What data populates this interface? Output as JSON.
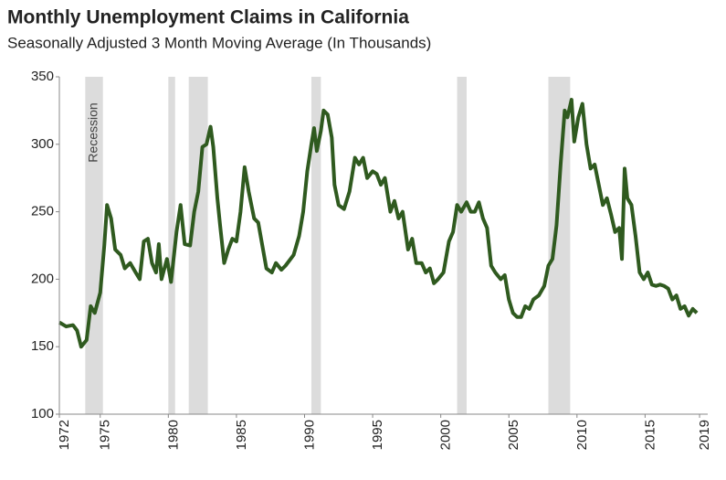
{
  "chart_data": {
    "type": "line",
    "title": "Monthly Unemployment Claims in California",
    "subtitle": "Seasonally Adjusted 3 Month Moving Average (In Thousands)",
    "annotation": "Recession",
    "recession_color": "#dcdcdc",
    "recessions": [
      [
        1973.9,
        1975.2
      ],
      [
        1980.0,
        1980.5
      ],
      [
        1981.5,
        1982.9
      ],
      [
        1990.5,
        1991.2
      ],
      [
        2001.2,
        2001.9
      ],
      [
        2007.9,
        2009.5
      ]
    ],
    "xlim": [
      1972,
      2019.6
    ],
    "xticks": [
      1972,
      1975,
      1980,
      1985,
      1990,
      1995,
      2000,
      2005,
      2010,
      2015,
      2019
    ],
    "ylim": [
      100,
      350
    ],
    "yticks": [
      100,
      150,
      200,
      250,
      300,
      350
    ],
    "series": [
      {
        "color": "#2f5a1f",
        "x": [
          1972.0,
          1972.5,
          1973.0,
          1973.3,
          1973.6,
          1974.0,
          1974.3,
          1974.6,
          1975.0,
          1975.3,
          1975.5,
          1975.8,
          1976.1,
          1976.5,
          1976.8,
          1977.2,
          1977.6,
          1977.9,
          1978.2,
          1978.5,
          1978.8,
          1979.1,
          1979.3,
          1979.5,
          1979.9,
          1980.2,
          1980.6,
          1980.9,
          1981.2,
          1981.6,
          1981.9,
          1982.2,
          1982.5,
          1982.8,
          1983.1,
          1983.3,
          1983.6,
          1983.8,
          1984.1,
          1984.4,
          1984.7,
          1985.0,
          1985.3,
          1985.6,
          1985.9,
          1986.3,
          1986.6,
          1986.9,
          1987.2,
          1987.6,
          1987.9,
          1988.3,
          1988.6,
          1988.9,
          1989.2,
          1989.6,
          1989.9,
          1990.2,
          1990.5,
          1990.7,
          1990.9,
          1991.2,
          1991.4,
          1991.7,
          1992.0,
          1992.2,
          1992.5,
          1992.9,
          1993.3,
          1993.7,
          1994.0,
          1994.3,
          1994.6,
          1995.0,
          1995.3,
          1995.6,
          1995.9,
          1996.3,
          1996.6,
          1996.9,
          1997.2,
          1997.6,
          1997.9,
          1998.2,
          1998.6,
          1998.9,
          1999.2,
          1999.5,
          1999.8,
          2000.2,
          2000.6,
          2000.9,
          2001.2,
          2001.5,
          2001.9,
          2002.2,
          2002.5,
          2002.8,
          2003.1,
          2003.4,
          2003.7,
          2004.0,
          2004.4,
          2004.7,
          2005.0,
          2005.3,
          2005.6,
          2005.9,
          2006.2,
          2006.5,
          2006.8,
          2007.2,
          2007.6,
          2007.9,
          2008.2,
          2008.5,
          2008.8,
          2009.1,
          2009.3,
          2009.6,
          2009.8,
          2010.1,
          2010.4,
          2010.7,
          2011.0,
          2011.3,
          2011.6,
          2011.9,
          2012.2,
          2012.5,
          2012.8,
          2013.1,
          2013.3,
          2013.5,
          2013.7,
          2014.0,
          2014.3,
          2014.6,
          2014.9,
          2015.2,
          2015.5,
          2015.8,
          2016.1,
          2016.4,
          2016.7,
          2017.0,
          2017.3,
          2017.6,
          2017.9,
          2018.2,
          2018.5,
          2018.8
        ],
        "values": [
          168,
          165,
          166,
          162,
          150,
          155,
          180,
          175,
          190,
          225,
          255,
          245,
          222,
          218,
          208,
          212,
          205,
          200,
          228,
          230,
          212,
          205,
          226,
          200,
          215,
          198,
          235,
          255,
          226,
          225,
          250,
          265,
          298,
          300,
          313,
          298,
          260,
          240,
          212,
          222,
          230,
          228,
          250,
          283,
          265,
          245,
          242,
          225,
          208,
          205,
          212,
          207,
          210,
          214,
          218,
          232,
          250,
          280,
          300,
          312,
          295,
          310,
          325,
          322,
          305,
          270,
          255,
          252,
          265,
          290,
          285,
          290,
          275,
          280,
          278,
          270,
          275,
          250,
          258,
          245,
          250,
          222,
          230,
          212,
          212,
          205,
          208,
          197,
          200,
          205,
          228,
          235,
          255,
          250,
          257,
          250,
          250,
          257,
          245,
          238,
          210,
          205,
          200,
          203,
          185,
          175,
          172,
          172,
          180,
          178,
          185,
          188,
          195,
          210,
          215,
          240,
          285,
          325,
          320,
          333,
          302,
          320,
          330,
          300,
          282,
          285,
          270,
          255,
          260,
          248,
          235,
          238,
          215,
          282,
          260,
          255,
          232,
          205,
          200,
          205,
          196,
          195,
          196,
          195,
          193,
          185,
          188,
          178,
          180,
          173,
          178,
          175
        ]
      }
    ]
  }
}
